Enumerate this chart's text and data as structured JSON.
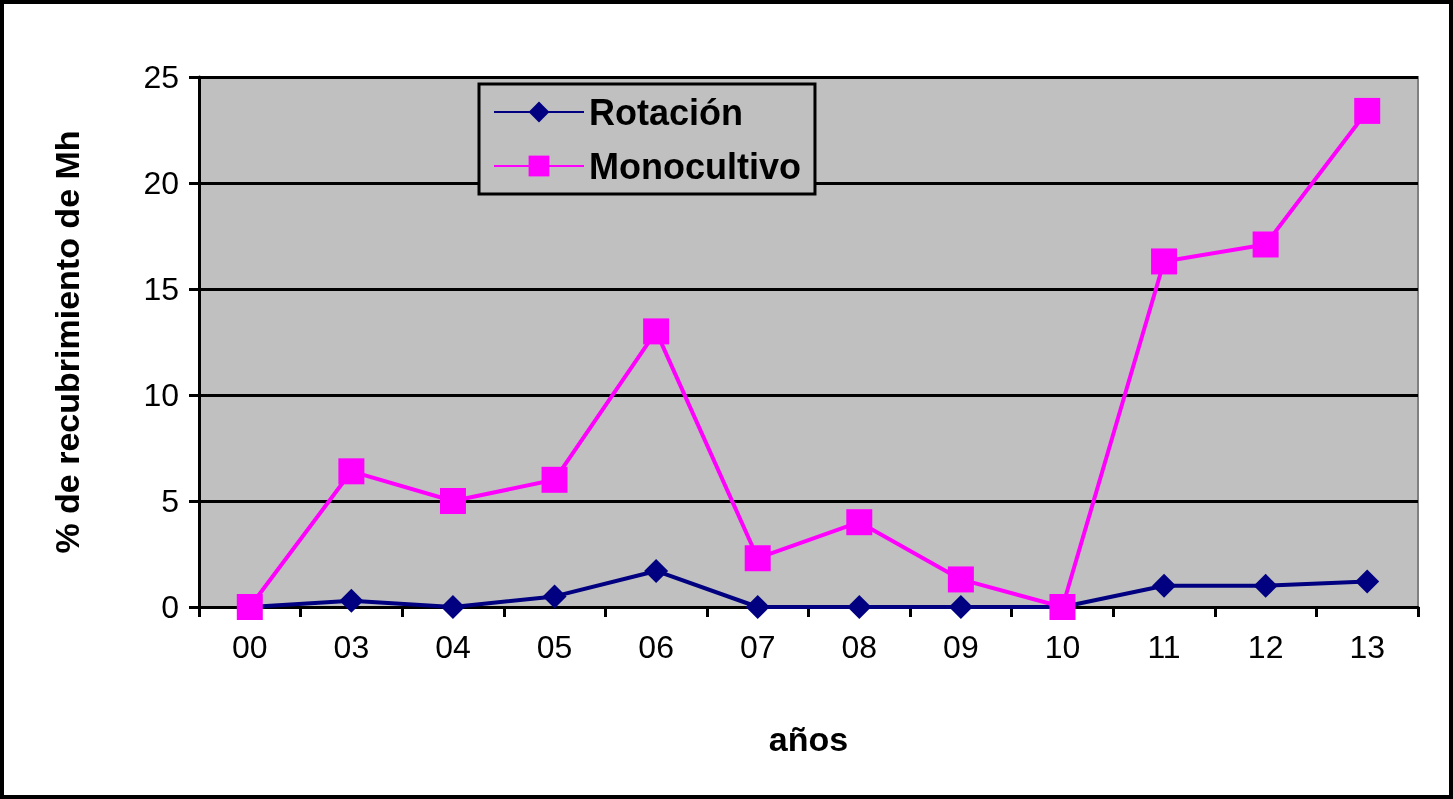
{
  "chart_data": {
    "type": "line",
    "xlabel": "años",
    "ylabel": "% de recubrimiento de Mh",
    "categories": [
      "00",
      "03",
      "04",
      "05",
      "06",
      "07",
      "08",
      "09",
      "10",
      "11",
      "12",
      "13"
    ],
    "series": [
      {
        "name": "Rotación",
        "color": "#000080",
        "marker": "diamond",
        "values": [
          0,
          0.3,
          0,
          0.5,
          1.7,
          0,
          0,
          0,
          0,
          1.0,
          1.0,
          1.2
        ]
      },
      {
        "name": "Monocultivo",
        "color": "#ff00ff",
        "marker": "square",
        "values": [
          0,
          6.4,
          5.0,
          6.0,
          13.0,
          2.3,
          4.0,
          1.3,
          0,
          16.3,
          17.1,
          23.4
        ]
      }
    ],
    "ylim": [
      0,
      25
    ],
    "yticks": [
      0,
      5,
      10,
      15,
      20,
      25
    ],
    "grid": "y",
    "legend": "top",
    "line_style": "solid"
  }
}
